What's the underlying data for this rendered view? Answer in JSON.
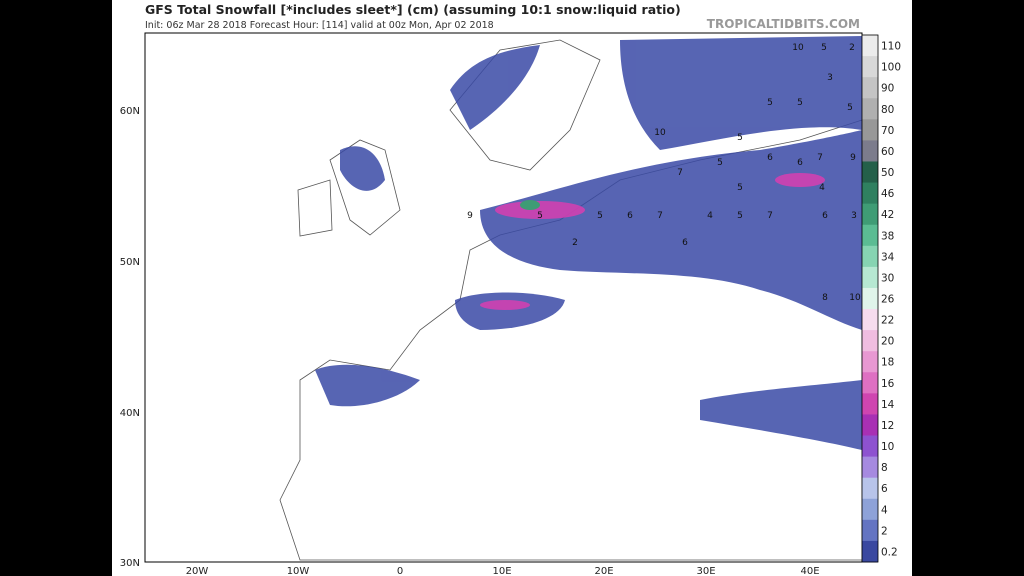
{
  "header": {
    "title": "GFS Total Snowfall [*includes sleet*] (cm) (assuming 10:1 snow:liquid ratio)",
    "subtitle": "Init: 06z Mar 28 2018   Forecast Hour: [114]   valid at 00z Mon, Apr 02 2018",
    "brand": "TROPICALTIDBITS.COM"
  },
  "map": {
    "lat_labels": [
      "60N",
      "50N",
      "40N",
      "30N"
    ],
    "lon_labels": [
      "20W",
      "10W",
      "0",
      "10E",
      "20E",
      "30E",
      "40E"
    ],
    "snow_labels": [
      "10",
      "5",
      "2",
      "3",
      "5",
      "10",
      "5",
      "5",
      "5",
      "6",
      "7",
      "9",
      "5",
      "7",
      "6",
      "5",
      "4",
      "9",
      "5",
      "5",
      "6",
      "7",
      "4",
      "5",
      "7",
      "6",
      "3",
      "2",
      "6",
      "8",
      "10"
    ]
  },
  "colorbar": {
    "levels": [
      110,
      100,
      90,
      80,
      70,
      60,
      50,
      46,
      42,
      38,
      34,
      30,
      26,
      22,
      20,
      18,
      16,
      14,
      12,
      10,
      8,
      6,
      4,
      2,
      0.2
    ],
    "colors": [
      "#ececec",
      "#d8d8d8",
      "#c4c4c4",
      "#b0b0b0",
      "#989898",
      "#7c7c8c",
      "#24604a",
      "#2f8060",
      "#3f9c75",
      "#5bbc93",
      "#86d4b2",
      "#b6e8d2",
      "#e0f4ea",
      "#f6dcee",
      "#f0bde0",
      "#e898d2",
      "#de70c2",
      "#cf45b0",
      "#a830b4",
      "#8e52d0",
      "#a68ae0",
      "#b8c4ea",
      "#8ea2d8",
      "#6474c2",
      "#3a48a0"
    ]
  }
}
